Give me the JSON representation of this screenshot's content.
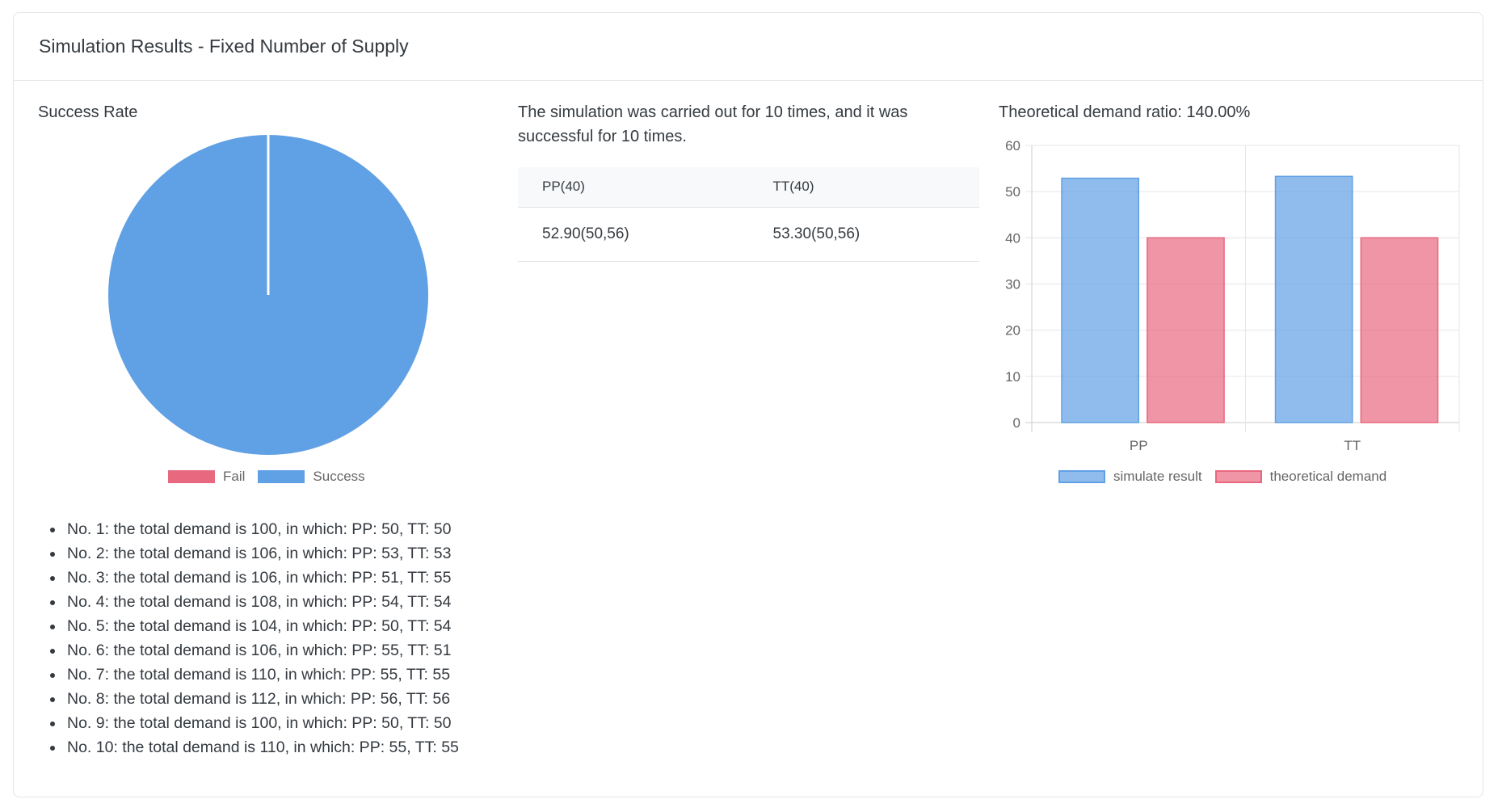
{
  "header": {
    "title": "Simulation Results - Fixed Number of Supply"
  },
  "success": {
    "title": "Success Rate"
  },
  "summary": {
    "text": "The simulation was carried out for 10 times, and it was successful for 10 times."
  },
  "table": {
    "headers": [
      "PP(40)",
      "TT(40)"
    ],
    "rows": [
      [
        "52.90(50,56)",
        "53.30(50,56)"
      ]
    ]
  },
  "ratio": {
    "title": "Theoretical demand ratio: 140.00%"
  },
  "runs": [
    "No. 1: the total demand is 100, in which: PP: 50, TT: 50",
    "No. 2: the total demand is 106, in which: PP: 53, TT: 53",
    "No. 3: the total demand is 106, in which: PP: 51, TT: 55",
    "No. 4: the total demand is 108, in which: PP: 54, TT: 54",
    "No. 5: the total demand is 104, in which: PP: 50, TT: 54",
    "No. 6: the total demand is 106, in which: PP: 55, TT: 51",
    "No. 7: the total demand is 110, in which: PP: 55, TT: 55",
    "No. 8: the total demand is 112, in which: PP: 56, TT: 56",
    "No. 9: the total demand is 100, in which: PP: 50, TT: 50",
    "No. 10: the total demand is 110, in which: PP: 55, TT: 55"
  ],
  "chart_data": [
    {
      "type": "pie",
      "labels": [
        "Fail",
        "Success"
      ],
      "values": [
        0,
        10
      ],
      "colors": [
        "#e8687f",
        "#60a0e4"
      ],
      "legend": "bottom"
    },
    {
      "type": "bar",
      "categories": [
        "PP",
        "TT"
      ],
      "series": [
        {
          "name": "simulate result",
          "values": [
            52.9,
            53.3
          ],
          "color": "#60a0e4"
        },
        {
          "name": "theoretical demand",
          "values": [
            40,
            40
          ],
          "color": "#e8687f"
        }
      ],
      "ylim": [
        0,
        60
      ],
      "yticks": [
        0,
        10,
        20,
        30,
        40,
        50,
        60
      ],
      "grid": true,
      "legend": "bottom"
    }
  ]
}
